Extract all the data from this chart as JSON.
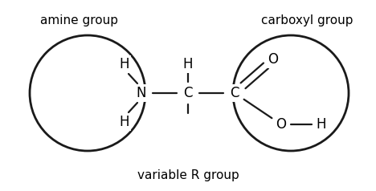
{
  "bg_color": "#ffffff",
  "fig_width": 4.68,
  "fig_height": 2.38,
  "dpi": 100,
  "label_amine": "amine group",
  "label_carboxyl": "carboxyl group",
  "label_R": "variable R group",
  "font_size_labels": 11,
  "font_size_atoms": 12,
  "line_color": "#1a1a1a",
  "line_width": 1.6,
  "circle_lw": 2.0
}
